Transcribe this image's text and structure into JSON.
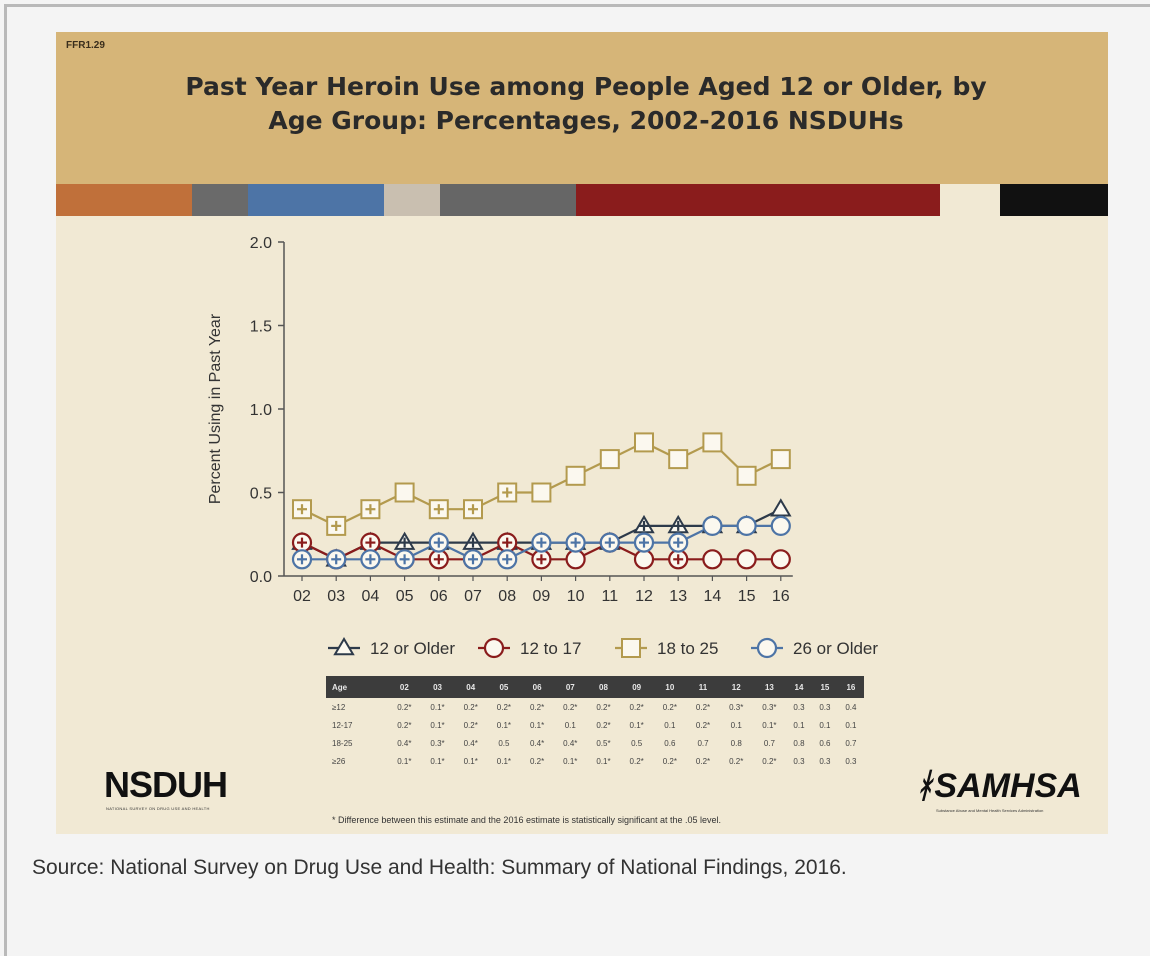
{
  "slide": {
    "id": "FFR1.29",
    "title_line1": "Past Year Heroin Use among People Aged 12 or Older, by",
    "title_line2": "Age Group: Percentages, 2002-2016 NSDUHs",
    "colors": {
      "banner": "#d6b578",
      "background": "#f1e9d4",
      "bar_segments": [
        "#c0703a",
        "#6a6a6a",
        "#4d74a6",
        "#c9bfb0",
        "#666666",
        "#8a1c1c",
        "#f1e9d4",
        "#111111"
      ]
    }
  },
  "chart_data": {
    "type": "line",
    "title": "",
    "xlabel": "",
    "ylabel": "Percent Using in Past Year",
    "ylim": [
      0,
      2.0
    ],
    "yticks": [
      "0.0",
      "0.5",
      "1.0",
      "1.5",
      "2.0"
    ],
    "categories": [
      "02",
      "03",
      "04",
      "05",
      "06",
      "07",
      "08",
      "09",
      "10",
      "11",
      "12",
      "13",
      "14",
      "15",
      "16"
    ],
    "grid": false,
    "legend_position": "bottom",
    "series": [
      {
        "name": "12 or Older",
        "marker": "triangle",
        "color": "#2d3a4a",
        "values": [
          0.2,
          0.1,
          0.2,
          0.2,
          0.2,
          0.2,
          0.2,
          0.2,
          0.2,
          0.2,
          0.3,
          0.3,
          0.3,
          0.3,
          0.4
        ],
        "significant": [
          true,
          true,
          true,
          true,
          true,
          true,
          true,
          true,
          true,
          true,
          true,
          true,
          false,
          false,
          false
        ]
      },
      {
        "name": "12 to 17",
        "marker": "circle",
        "color": "#8a1c1c",
        "values": [
          0.2,
          0.1,
          0.2,
          0.1,
          0.1,
          0.1,
          0.2,
          0.1,
          0.1,
          0.2,
          0.1,
          0.1,
          0.1,
          0.1,
          0.1
        ],
        "significant": [
          true,
          true,
          true,
          true,
          true,
          false,
          true,
          true,
          false,
          true,
          false,
          true,
          false,
          false,
          false
        ]
      },
      {
        "name": "18 to 25",
        "marker": "square",
        "color": "#b39a4e",
        "values": [
          0.4,
          0.3,
          0.4,
          0.5,
          0.4,
          0.4,
          0.5,
          0.5,
          0.6,
          0.7,
          0.8,
          0.7,
          0.8,
          0.6,
          0.7
        ],
        "significant": [
          true,
          true,
          true,
          false,
          true,
          true,
          true,
          false,
          false,
          false,
          false,
          false,
          false,
          false,
          false
        ]
      },
      {
        "name": "26 or Older",
        "marker": "circle",
        "color": "#4d74a6",
        "values": [
          0.1,
          0.1,
          0.1,
          0.1,
          0.2,
          0.1,
          0.1,
          0.2,
          0.2,
          0.2,
          0.2,
          0.2,
          0.3,
          0.3,
          0.3
        ],
        "significant": [
          true,
          true,
          true,
          true,
          true,
          true,
          true,
          true,
          true,
          true,
          true,
          true,
          false,
          false,
          false
        ]
      }
    ]
  },
  "table": {
    "header": [
      "Age",
      "02",
      "03",
      "04",
      "05",
      "06",
      "07",
      "08",
      "09",
      "10",
      "11",
      "12",
      "13",
      "14",
      "15",
      "16"
    ],
    "rows": [
      [
        "≥12",
        "0.2*",
        "0.1*",
        "0.2*",
        "0.2*",
        "0.2*",
        "0.2*",
        "0.2*",
        "0.2*",
        "0.2*",
        "0.2*",
        "0.3*",
        "0.3*",
        "0.3",
        "0.3",
        "0.4"
      ],
      [
        "12-17",
        "0.2*",
        "0.1*",
        "0.2*",
        "0.1*",
        "0.1*",
        "0.1",
        "0.2*",
        "0.1*",
        "0.1",
        "0.2*",
        "0.1",
        "0.1*",
        "0.1",
        "0.1",
        "0.1"
      ],
      [
        "18-25",
        "0.4*",
        "0.3*",
        "0.4*",
        "0.5",
        "0.4*",
        "0.4*",
        "0.5*",
        "0.5",
        "0.6",
        "0.7",
        "0.8",
        "0.7",
        "0.8",
        "0.6",
        "0.7"
      ],
      [
        "≥26",
        "0.1*",
        "0.1*",
        "0.1*",
        "0.1*",
        "0.2*",
        "0.1*",
        "0.1*",
        "0.2*",
        "0.2*",
        "0.2*",
        "0.2*",
        "0.2*",
        "0.3",
        "0.3",
        "0.3"
      ]
    ],
    "footnote": "* Difference between this estimate and the 2016 estimate is statistically significant at the .05 level."
  },
  "logos": {
    "left": "NSDUH",
    "left_sub": "NATIONAL SURVEY ON DRUG USE AND HEALTH",
    "right": "SAMHSA",
    "right_sub": "Substance Abuse and Mental Health Services Administration"
  },
  "caption": "Source: National Survey on Drug Use and Health: Summary of National Findings, 2016."
}
